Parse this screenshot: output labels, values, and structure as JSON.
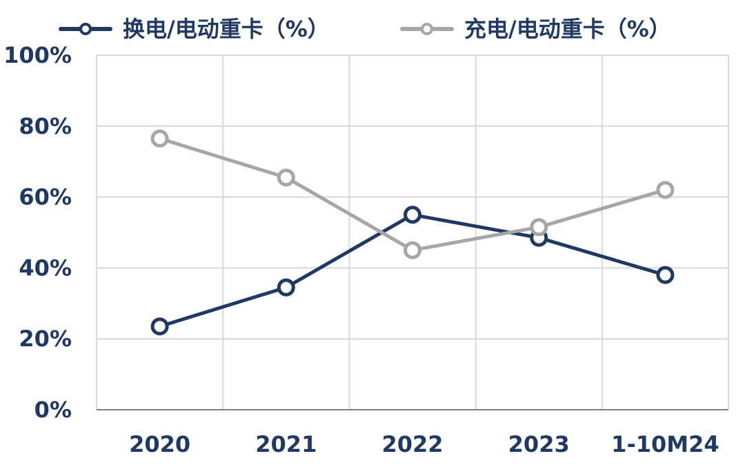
{
  "chart_data": {
    "type": "line",
    "title": "",
    "xlabel": "",
    "ylabel": "",
    "categories": [
      "2020",
      "2021",
      "2022",
      "2023",
      "1-10M24"
    ],
    "ylim": [
      0,
      100
    ],
    "yticks": [
      0,
      20,
      40,
      60,
      80,
      100
    ],
    "ytick_labels": [
      "0%",
      "20%",
      "40%",
      "60%",
      "80%",
      "100%"
    ],
    "grid": true,
    "legend_position": "top",
    "series": [
      {
        "name": "换电/电动重卡（%）",
        "values": [
          23.5,
          34.5,
          55,
          48.5,
          38
        ],
        "color": "#1f3864"
      },
      {
        "name": "充电/电动重卡（%）",
        "values": [
          76.5,
          65.5,
          45,
          51.5,
          62
        ],
        "color": "#a6a6a6"
      }
    ],
    "text_color": "#1f3864"
  }
}
